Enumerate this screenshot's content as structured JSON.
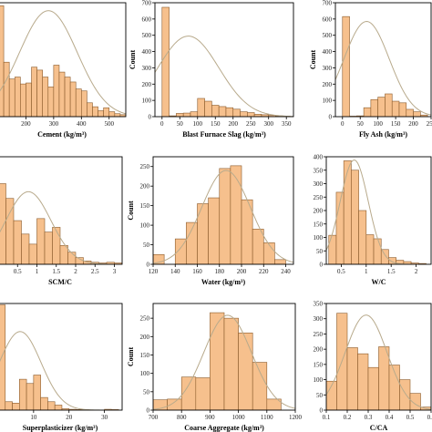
{
  "colors": {
    "bar_fill": "#f6c08d",
    "bar_stroke": "#8a5a2b",
    "curve": "#b8aa8c",
    "axis": "#000000"
  },
  "chart_data": [
    {
      "type": "bar",
      "subtype": "histogram-with-normal-curve",
      "xlabel": "Cement (kg/m³)",
      "ylabel": "",
      "xlim": [
        100,
        560
      ],
      "ylim": [
        0,
        115
      ],
      "xticks": [
        200,
        300,
        400,
        500
      ],
      "yticks": [],
      "bins": [
        [
          100,
          120,
          112
        ],
        [
          120,
          140,
          55
        ],
        [
          140,
          160,
          38
        ],
        [
          160,
          180,
          40
        ],
        [
          180,
          200,
          33
        ],
        [
          200,
          220,
          34
        ],
        [
          220,
          240,
          50
        ],
        [
          240,
          260,
          47
        ],
        [
          260,
          280,
          40
        ],
        [
          280,
          300,
          30
        ],
        [
          300,
          320,
          52
        ],
        [
          320,
          340,
          45
        ],
        [
          340,
          360,
          40
        ],
        [
          360,
          380,
          35
        ],
        [
          380,
          400,
          28
        ],
        [
          400,
          420,
          26
        ],
        [
          420,
          440,
          14
        ],
        [
          440,
          460,
          10
        ],
        [
          460,
          480,
          6
        ],
        [
          480,
          500,
          9
        ],
        [
          500,
          520,
          5
        ],
        [
          520,
          540,
          3
        ],
        [
          540,
          560,
          2
        ]
      ],
      "normal_curve": {
        "mean": 281,
        "sd": 104,
        "peak": 107
      }
    },
    {
      "type": "bar",
      "subtype": "histogram-with-normal-curve",
      "xlabel": "Blast Furnace Slag (kg/m³)",
      "ylabel": "Count",
      "xlim": [
        -20,
        370
      ],
      "ylim": [
        0,
        700
      ],
      "xticks": [
        0,
        50,
        100,
        150,
        200,
        250,
        300,
        350
      ],
      "yticks": [
        0,
        100,
        200,
        300,
        400,
        500,
        600,
        700
      ],
      "bins": [
        [
          0,
          20,
          672
        ],
        [
          20,
          40,
          5
        ],
        [
          40,
          60,
          20
        ],
        [
          60,
          80,
          22
        ],
        [
          80,
          100,
          30
        ],
        [
          100,
          120,
          112
        ],
        [
          120,
          140,
          95
        ],
        [
          140,
          160,
          70
        ],
        [
          160,
          180,
          62
        ],
        [
          180,
          200,
          55
        ],
        [
          200,
          220,
          46
        ],
        [
          220,
          240,
          30
        ],
        [
          240,
          260,
          25
        ],
        [
          260,
          280,
          15
        ],
        [
          280,
          300,
          12
        ],
        [
          300,
          320,
          8
        ],
        [
          320,
          340,
          5
        ],
        [
          340,
          360,
          3
        ]
      ],
      "normal_curve": {
        "mean": 74,
        "sd": 86,
        "peak": 495
      }
    },
    {
      "type": "bar",
      "subtype": "histogram-with-normal-curve",
      "xlabel": "Fly Ash (kg/m³)",
      "ylabel": "Count",
      "xlim": [
        -20,
        250
      ],
      "ylim": [
        0,
        700
      ],
      "xticks": [
        0,
        50,
        100,
        150,
        200,
        250
      ],
      "yticks": [
        0,
        100,
        200,
        300,
        400,
        500,
        600,
        700
      ],
      "bins": [
        [
          0,
          20,
          615
        ],
        [
          20,
          40,
          3
        ],
        [
          40,
          60,
          5
        ],
        [
          60,
          80,
          55
        ],
        [
          80,
          100,
          105
        ],
        [
          100,
          120,
          120
        ],
        [
          120,
          140,
          140
        ],
        [
          140,
          160,
          95
        ],
        [
          160,
          180,
          85
        ],
        [
          180,
          200,
          45
        ],
        [
          200,
          220,
          30
        ],
        [
          220,
          240,
          10
        ]
      ],
      "normal_curve": {
        "mean": 68,
        "sd": 64,
        "peak": 585
      }
    },
    {
      "type": "bar",
      "subtype": "histogram-with-normal-curve",
      "xlabel": "SCM/C",
      "ylabel": "",
      "xlim": [
        0,
        3.2
      ],
      "ylim": [
        0,
        160
      ],
      "xticks": [
        0.5,
        1.0,
        1.5,
        2.0,
        2.5,
        3.0
      ],
      "yticks": [],
      "bins": [
        [
          0,
          0.2,
          120
        ],
        [
          0.2,
          0.4,
          98
        ],
        [
          0.4,
          0.6,
          65
        ],
        [
          0.6,
          0.8,
          45
        ],
        [
          0.8,
          1.0,
          30
        ],
        [
          1.0,
          1.2,
          68
        ],
        [
          1.2,
          1.4,
          48
        ],
        [
          1.4,
          1.6,
          55
        ],
        [
          1.6,
          1.8,
          28
        ],
        [
          1.8,
          2.0,
          18
        ],
        [
          2.0,
          2.2,
          10
        ],
        [
          2.2,
          2.4,
          5
        ],
        [
          2.4,
          2.6,
          3
        ],
        [
          2.6,
          2.8,
          2
        ],
        [
          2.8,
          3.0,
          3
        ],
        [
          3.0,
          3.2,
          2
        ]
      ],
      "normal_curve": {
        "mean": 0.78,
        "sd": 0.58,
        "peak": 108
      }
    },
    {
      "type": "bar",
      "subtype": "histogram-with-normal-curve",
      "xlabel": "Water (kg/m³)",
      "ylabel": "Count",
      "xlim": [
        120,
        247
      ],
      "ylim": [
        0,
        275
      ],
      "xticks": [
        120,
        140,
        160,
        180,
        200,
        220,
        240
      ],
      "yticks": [
        0,
        50,
        100,
        150,
        200,
        250
      ],
      "bins": [
        [
          120,
          130,
          25
        ],
        [
          140,
          150,
          65
        ],
        [
          150,
          160,
          107
        ],
        [
          160,
          170,
          155
        ],
        [
          170,
          180,
          170
        ],
        [
          180,
          190,
          245
        ],
        [
          190,
          200,
          252
        ],
        [
          200,
          210,
          165
        ],
        [
          210,
          220,
          90
        ],
        [
          220,
          230,
          55
        ],
        [
          230,
          240,
          12
        ]
      ],
      "normal_curve": {
        "mean": 186,
        "sd": 22,
        "peak": 240
      }
    },
    {
      "type": "bar",
      "subtype": "histogram-with-normal-curve",
      "xlabel": "W/C",
      "ylabel": "",
      "xlim": [
        0.2,
        2.3
      ],
      "ylim": [
        0,
        400
      ],
      "xticks": [
        0.5,
        1.0,
        1.5,
        2.0
      ],
      "yticks": [
        0,
        50,
        100,
        150,
        200,
        250,
        300,
        350,
        400
      ],
      "bins": [
        [
          0.25,
          0.4,
          108
        ],
        [
          0.4,
          0.55,
          268
        ],
        [
          0.55,
          0.7,
          385
        ],
        [
          0.7,
          0.85,
          350
        ],
        [
          0.85,
          1.0,
          200
        ],
        [
          1.0,
          1.15,
          110
        ],
        [
          1.15,
          1.3,
          95
        ],
        [
          1.3,
          1.45,
          55
        ],
        [
          1.45,
          1.6,
          25
        ],
        [
          1.6,
          1.75,
          15
        ],
        [
          1.75,
          1.9,
          10
        ],
        [
          1.9,
          2.05,
          5
        ],
        [
          2.05,
          2.2,
          3
        ]
      ],
      "normal_curve": {
        "mean": 0.76,
        "sd": 0.28,
        "peak": 388
      }
    },
    {
      "type": "bar",
      "subtype": "histogram-with-normal-curve",
      "xlabel": "Superplasticizer (kg/m³)",
      "ylabel": "",
      "xlim": [
        0,
        35
      ],
      "ylim": [
        0,
        380
      ],
      "xticks": [
        0,
        10,
        20,
        30
      ],
      "yticks": [],
      "bins": [
        [
          0,
          2,
          375
        ],
        [
          2,
          4,
          30
        ],
        [
          4,
          6,
          25
        ],
        [
          6,
          8,
          110
        ],
        [
          8,
          10,
          95
        ],
        [
          10,
          12,
          125
        ],
        [
          12,
          14,
          45
        ],
        [
          14,
          16,
          30
        ],
        [
          16,
          18,
          18
        ],
        [
          18,
          20,
          5
        ],
        [
          20,
          22,
          3
        ],
        [
          22,
          24,
          2
        ],
        [
          30,
          32,
          3
        ],
        [
          32,
          34,
          2
        ]
      ],
      "normal_curve": {
        "mean": 6.2,
        "sd": 5.9,
        "peak": 280
      }
    },
    {
      "type": "bar",
      "subtype": "histogram-with-normal-curve",
      "xlabel": "Coarse Aggregate (kg/m³)",
      "ylabel": "Count",
      "xlim": [
        700,
        1200
      ],
      "ylim": [
        0,
        290
      ],
      "xticks": [
        700,
        800,
        900,
        1000,
        1100,
        1200
      ],
      "yticks": [
        0,
        50,
        100,
        150,
        200,
        250
      ],
      "bins": [
        [
          700,
          750,
          28
        ],
        [
          750,
          800,
          30
        ],
        [
          800,
          850,
          90
        ],
        [
          850,
          900,
          88
        ],
        [
          900,
          950,
          265
        ],
        [
          950,
          1000,
          250
        ],
        [
          1000,
          1050,
          210
        ],
        [
          1050,
          1100,
          130
        ],
        [
          1100,
          1150,
          30
        ]
      ],
      "normal_curve": {
        "mean": 962,
        "sd": 84,
        "peak": 258
      }
    },
    {
      "type": "bar",
      "subtype": "histogram-with-normal-curve",
      "xlabel": "C/CA",
      "ylabel": "",
      "xlim": [
        0.1,
        0.6
      ],
      "ylim": [
        0,
        350
      ],
      "xticks": [
        0.1,
        0.2,
        0.3,
        0.4,
        0.5,
        0.6
      ],
      "yticks": [
        0,
        50,
        100,
        150,
        200,
        250,
        300,
        350
      ],
      "bins": [
        [
          0.1,
          0.15,
          95
        ],
        [
          0.15,
          0.2,
          318
        ],
        [
          0.2,
          0.25,
          205
        ],
        [
          0.25,
          0.3,
          185
        ],
        [
          0.3,
          0.35,
          140
        ],
        [
          0.35,
          0.4,
          208
        ],
        [
          0.4,
          0.45,
          148
        ],
        [
          0.45,
          0.5,
          100
        ],
        [
          0.5,
          0.55,
          55
        ],
        [
          0.55,
          0.6,
          10
        ]
      ],
      "normal_curve": {
        "mean": 0.29,
        "sd": 0.1,
        "peak": 312
      }
    }
  ]
}
